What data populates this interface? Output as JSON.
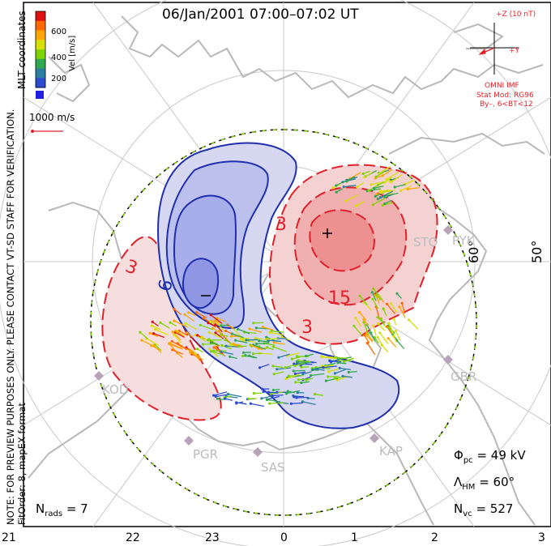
{
  "title": "06/Jan/2001  07:00–07:02  UT",
  "colorbar": {
    "label": "Vel [m/s]",
    "ticks": [
      "600",
      "400",
      "200"
    ],
    "colors": [
      "#e01010",
      "#ff6a00",
      "#ffa500",
      "#d7e000",
      "#7fd400",
      "#2fa84f",
      "#2a7fa0",
      "#2e4bd0"
    ]
  },
  "mlt_label": "MLT coordinates",
  "vector_scale": "1000 m/s",
  "warning_note": "NOTE: FOR PREVIEW PURPOSES ONLY. PLEASE CONTACT VT-SD STAFF FOR VERIFICATION.",
  "fit_info": "FitOrder: 8, mapEX format",
  "imf": {
    "z_label": "+Z (10 nT)",
    "y_label": "+Y",
    "source": "OMNI IMF",
    "model": "Stat Mod: RG96",
    "condition": "By–, 6<BT<12"
  },
  "potential_labels": {
    "max_symbol": "+",
    "min_symbol": "–",
    "contours": [
      "3",
      "3",
      "6",
      "15",
      "3"
    ]
  },
  "lat_labels": [
    "60°",
    "50°"
  ],
  "stations": [
    "STO",
    "PYK",
    "GBR",
    "KAP",
    "SAS",
    "PGR",
    "KOD"
  ],
  "stats": {
    "phi_pc": {
      "symbol": "Φ",
      "sub": "pc",
      "value": "= 49 kV"
    },
    "lambda_hm": {
      "symbol": "Λ",
      "sub": "HM",
      "value": "= 60°"
    },
    "n_vc": {
      "symbol": "N",
      "sub": "vc",
      "value": "= 527"
    },
    "n_rads": {
      "symbol": "N",
      "sub": "rads",
      "value": "= 7"
    }
  },
  "x_ticks": [
    "21",
    "22",
    "23",
    "0",
    "1",
    "2",
    "3"
  ],
  "colors": {
    "positive_fill": "#f2b8b8",
    "negative_fill": "#aab0e8",
    "positive_line": "#e0202a",
    "negative_line": "#1f2fae",
    "map": "#c0c0c0",
    "hmb": "#7fd400"
  }
}
